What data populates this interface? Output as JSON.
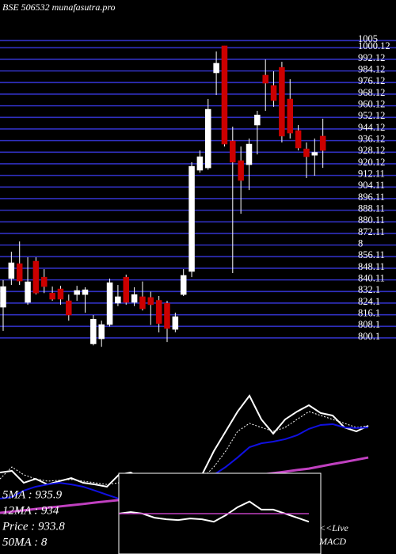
{
  "chart_data": [
    {
      "type": "candlestick",
      "title": "BSE 506532 munafasutra.pro",
      "open": [
        821.3,
        841,
        851.3,
        824.6,
        853,
        842,
        831,
        833.9,
        825.7,
        830,
        830,
        796,
        799.5,
        809.3,
        824.1,
        842,
        824.6,
        828.5,
        828,
        826,
        824,
        806,
        830,
        845.9,
        915.7,
        917.3,
        982.8,
        1001.4,
        935.9,
        922.3,
        919.5,
        946.8,
        981.2,
        974.1,
        986.6,
        964.8,
        943,
        930.4,
        926,
        939.2
      ],
      "high": [
        840,
        859.5,
        866.6,
        855.7,
        855.7,
        847.5,
        835.5,
        836,
        830,
        836,
        835,
        815.9,
        812,
        841,
        836.6,
        843.7,
        835,
        839,
        832,
        829,
        825.7,
        817.5,
        847.5,
        921.2,
        929.3,
        964.8,
        997.5,
        1001.4,
        945.7,
        932,
        937.5,
        956.6,
        992,
        983.9,
        990.4,
        978.4,
        946.8,
        934.8,
        937.5,
        951.2
      ],
      "low": [
        805,
        836.6,
        836.6,
        823,
        830,
        831,
        825.7,
        823,
        812,
        825.7,
        817.5,
        795,
        794,
        808,
        822,
        823,
        822,
        819,
        809,
        803.9,
        797.3,
        804,
        829,
        842,
        914,
        916,
        967.5,
        932,
        844.8,
        885.7,
        902,
        926.6,
        956.6,
        959.4,
        934.8,
        937.5,
        929.3,
        910.3,
        911.9,
        917.3
      ],
      "close": [
        835.5,
        851.9,
        839.3,
        838.8,
        831,
        835.5,
        826.8,
        826.8,
        815.9,
        832.8,
        833.3,
        813,
        809.3,
        838.2,
        828.5,
        824.6,
        830,
        820.2,
        823,
        810,
        806.6,
        814.8,
        843.2,
        918.4,
        925,
        957.7,
        989.4,
        933.7,
        921.2,
        908.6,
        933.7,
        953.8,
        975.7,
        963.7,
        939.2,
        941.3,
        931,
        925,
        928,
        929.3
      ],
      "up_color": "#ffffff",
      "down_color": "#cc0000",
      "grid": true,
      "grid_color": "#3030c0",
      "ylim": [
        793,
        1033
      ],
      "yticks": [
        800.1,
        808.1,
        816.1,
        824.1,
        832.1,
        840.11,
        848.11,
        856.11,
        {
          "value": 864.11,
          "label": "8"
        },
        872.11,
        880.11,
        888.11,
        896.11,
        904.11,
        912.11,
        920.12,
        928.12,
        936.12,
        944.12,
        952.12,
        960.12,
        968.12,
        976.12,
        984.12,
        992.12,
        1000.12,
        1005
      ]
    },
    {
      "type": "line",
      "ylim": [
        0,
        100
      ],
      "series": [
        {
          "color": "#ffffff",
          "values": [
            39.6,
            40.4,
            34.6,
            36.5,
            33.8,
            35.4,
            36.9,
            34.6,
            33.8,
            32.7,
            38.5,
            39.6,
            36.5,
            34.6,
            33.8,
            34.6,
            36.5,
            38.5,
            50,
            59.6,
            69.2,
            76.9,
            65.4,
            58.5,
            65.4,
            69.2,
            72.3,
            68.5,
            67.3,
            61.5,
            59.6,
            62.3
          ]
        },
        {
          "color": "#ffffff",
          "dash": true,
          "values": [
            36.5,
            42.3,
            38.5,
            36.5,
            35.4,
            35.8,
            36.2,
            35.4,
            34.6,
            33.8,
            34.6,
            35.4,
            35.8,
            35.4,
            34.6,
            34.6,
            35.4,
            36.5,
            42.3,
            50,
            59.6,
            63.5,
            61.5,
            59.6,
            61.5,
            65.4,
            69.2,
            67.3,
            65.4,
            63.5,
            61.5,
            62.3
          ]
        },
        {
          "color": "#1010e0",
          "values": [
            26.9,
            27.7,
            30.8,
            32.7,
            33.8,
            34.6,
            33.8,
            32.7,
            30.8,
            28.8,
            26.9,
            26.9,
            27.7,
            28.5,
            29.2,
            30.8,
            32.3,
            34.6,
            38.5,
            42.3,
            46.9,
            51.9,
            53.8,
            54.6,
            55.8,
            57.7,
            60.8,
            62.7,
            63.1,
            61.5,
            61.2,
            61.5
          ]
        },
        {
          "color": "#c040c0",
          "values": [
            20,
            20.6,
            21.2,
            21.9,
            22.5,
            23.1,
            23.7,
            24.3,
            25,
            25.6,
            26.2,
            27.7,
            29.1,
            30.6,
            32.1,
            33.6,
            35,
            36.5,
            36.9,
            37.3,
            37.7,
            38.1,
            38.5,
            39.3,
            40,
            40.8,
            41.5,
            42.6,
            43.7,
            44.7,
            45.8,
            46.9
          ]
        }
      ],
      "annotations": [
        "5MA : 935.9",
        "12MA : 934",
        "Price  : 933.8",
        "50MA : 8"
      ]
    },
    {
      "type": "macd",
      "ylim": [
        0,
        100
      ],
      "series": [
        {
          "color": "#ffffff",
          "values": [
            50,
            52,
            50,
            45,
            43,
            42,
            44,
            43,
            40,
            48,
            58,
            65,
            55,
            55,
            50,
            45,
            40
          ]
        },
        {
          "color": "#c040c0",
          "values": [
            50,
            50,
            50,
            50,
            50,
            50,
            50,
            50,
            50,
            50,
            50,
            50,
            50,
            50,
            50,
            50,
            50
          ]
        }
      ],
      "annotations": [
        "<<Live",
        "MACD"
      ]
    }
  ]
}
